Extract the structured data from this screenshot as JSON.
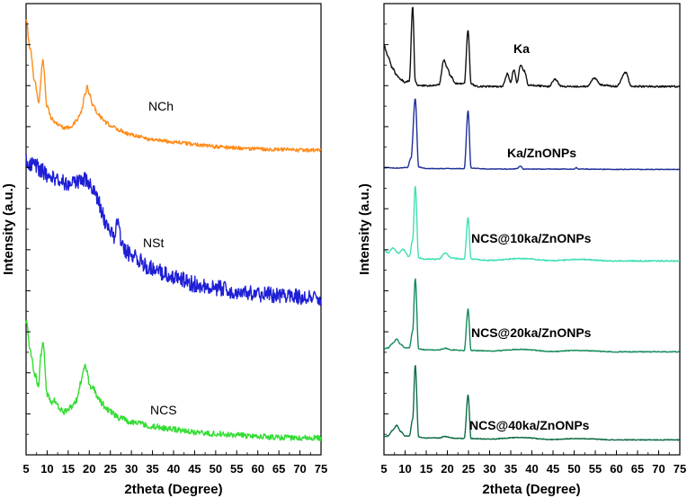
{
  "chart_data": [
    {
      "type": "line",
      "panel": "left",
      "title": "",
      "xlabel": "2theta (Degree)",
      "ylabel": "Intensity (a.u.)",
      "xlim": [
        5,
        75
      ],
      "xticks": [
        5,
        10,
        15,
        20,
        25,
        30,
        35,
        40,
        45,
        50,
        55,
        60,
        65,
        70,
        75
      ],
      "series": [
        {
          "name": "NCh",
          "color": "#ff8c1a",
          "x": [
            5,
            6,
            7,
            8,
            9,
            10,
            11,
            12,
            13,
            14,
            15,
            16,
            17,
            18,
            19,
            19.5,
            20,
            21,
            22,
            23,
            24,
            25,
            27,
            30,
            35,
            40,
            45,
            50,
            55,
            60,
            65,
            70,
            75
          ],
          "y": [
            8.0,
            6.8,
            5.5,
            4.6,
            6.3,
            4.4,
            3.9,
            3.7,
            3.6,
            3.5,
            3.5,
            3.6,
            3.8,
            4.1,
            4.9,
            5.2,
            4.9,
            4.4,
            4.1,
            3.9,
            3.7,
            3.6,
            3.4,
            3.2,
            3.0,
            2.9,
            2.8,
            2.7,
            2.65,
            2.6,
            2.58,
            2.55,
            2.55
          ],
          "noise": 0.08
        },
        {
          "name": "NSt",
          "color": "#1f1fd6",
          "x": [
            5,
            7,
            9,
            11,
            13,
            15,
            17,
            19,
            20,
            21,
            22,
            23,
            24,
            25,
            26,
            26.7,
            27.5,
            28,
            30,
            32,
            34,
            36,
            38,
            40,
            45,
            50,
            55,
            60,
            65,
            70,
            75
          ],
          "y": [
            7.4,
            7.2,
            7.0,
            6.8,
            6.7,
            6.6,
            6.6,
            6.7,
            6.6,
            6.4,
            6.0,
            5.6,
            5.2,
            4.9,
            4.6,
            5.3,
            4.7,
            4.3,
            4.1,
            3.9,
            3.7,
            3.6,
            3.45,
            3.35,
            3.1,
            2.95,
            2.85,
            2.75,
            2.7,
            2.65,
            2.6
          ],
          "noise": 0.28
        },
        {
          "name": "NCS",
          "color": "#33dd33",
          "x": [
            5,
            6,
            7,
            8,
            8.5,
            9,
            10,
            11,
            12,
            13,
            14,
            15,
            16,
            17,
            18,
            19,
            19.5,
            20,
            21,
            22,
            23,
            24,
            25,
            27,
            30,
            35,
            40,
            45,
            50,
            55,
            60,
            65,
            70,
            75
          ],
          "y": [
            6.6,
            5.6,
            4.8,
            4.4,
            5.4,
            5.9,
            4.1,
            3.8,
            3.9,
            3.6,
            3.5,
            3.6,
            3.7,
            3.9,
            4.5,
            5.1,
            4.9,
            4.4,
            4.3,
            4.0,
            3.8,
            3.6,
            3.5,
            3.3,
            3.15,
            3.0,
            2.9,
            2.8,
            2.75,
            2.7,
            2.65,
            2.62,
            2.6,
            2.6
          ],
          "noise": 0.1
        }
      ]
    },
    {
      "type": "line",
      "panel": "right",
      "title": "",
      "xlabel": "2theta (Degree)",
      "ylabel": "Intensity (a.u.)",
      "xlim": [
        5,
        75
      ],
      "xticks": [
        5,
        10,
        15,
        20,
        25,
        30,
        35,
        40,
        45,
        50,
        55,
        60,
        65,
        70,
        75
      ],
      "series": [
        {
          "name": "Ka",
          "color": "#111111",
          "x": [
            5,
            6,
            7,
            8,
            9,
            10,
            11,
            11.8,
            12.4,
            13,
            15,
            18,
            19.2,
            20,
            20.8,
            22,
            24,
            24.9,
            25.6,
            27,
            30,
            33,
            34.2,
            35,
            35.7,
            36.5,
            37.3,
            38.2,
            39.2,
            41,
            44,
            45.5,
            47,
            50,
            53,
            54.8,
            56.5,
            60,
            62.2,
            63.5,
            66,
            70,
            75
          ],
          "y": [
            3.2,
            2.4,
            1.6,
            1.1,
            0.8,
            0.6,
            0.7,
            6.0,
            0.7,
            0.4,
            0.35,
            0.4,
            2.2,
            1.6,
            1.0,
            0.5,
            0.5,
            4.3,
            0.5,
            0.3,
            0.3,
            0.3,
            1.2,
            0.6,
            1.5,
            0.6,
            1.8,
            1.4,
            0.4,
            0.35,
            0.3,
            0.8,
            0.3,
            0.3,
            0.3,
            0.9,
            0.4,
            0.3,
            1.3,
            0.3,
            0.3,
            0.3,
            0.3
          ],
          "noise": 0.06
        },
        {
          "name": "Ka/ZnONPs",
          "color": "#1f2f99",
          "x": [
            5,
            8,
            10.5,
            11.4,
            12.4,
            13.2,
            15,
            20,
            24,
            24.9,
            25.6,
            30,
            35,
            36.5,
            37.3,
            38,
            45,
            50,
            50.5,
            51,
            60,
            75
          ],
          "y": [
            0.3,
            0.25,
            0.3,
            1.2,
            7.0,
            0.35,
            0.2,
            0.2,
            0.2,
            5.8,
            0.25,
            0.15,
            0.15,
            0.2,
            0.45,
            0.15,
            0.15,
            0.15,
            0.3,
            0.15,
            0.12,
            0.12
          ],
          "noise": 0.03
        },
        {
          "name": "NCS@10ka/ZnONPs",
          "color": "#40e0b5",
          "x": [
            5,
            6,
            7,
            8.5,
            9.5,
            11,
            11.8,
            12.4,
            13.2,
            15,
            18,
            19.5,
            21,
            24,
            24.9,
            25.6,
            30,
            37.3,
            45,
            50.5,
            60,
            75
          ],
          "y": [
            1.2,
            0.9,
            1.3,
            0.9,
            1.2,
            0.6,
            2.0,
            6.4,
            0.5,
            0.4,
            0.4,
            0.9,
            0.5,
            0.4,
            3.8,
            0.4,
            0.3,
            0.45,
            0.28,
            0.38,
            0.25,
            0.25
          ],
          "noise": 0.05
        },
        {
          "name": "NCS@20ka/ZnONPs",
          "color": "#148a5a",
          "x": [
            5,
            6,
            7,
            8,
            9,
            10,
            11,
            11.8,
            12.4,
            13.2,
            15,
            18,
            19.5,
            21,
            24,
            24.9,
            25.6,
            30,
            37.3,
            45,
            50.5,
            60,
            75
          ],
          "y": [
            0.5,
            0.6,
            1.0,
            1.4,
            0.9,
            0.6,
            0.6,
            2.2,
            7.1,
            0.5,
            0.4,
            0.4,
            0.55,
            0.4,
            0.35,
            4.2,
            0.35,
            0.3,
            0.45,
            0.25,
            0.35,
            0.22,
            0.22
          ],
          "noise": 0.04
        },
        {
          "name": "NCS@40ka/ZnONPs",
          "color": "#0e6e45",
          "x": [
            5,
            6,
            7,
            8,
            9,
            10,
            11,
            11.8,
            12.4,
            13.2,
            15,
            18,
            19.5,
            21,
            24,
            24.9,
            25.6,
            30,
            37.3,
            45,
            50.5,
            60,
            75
          ],
          "y": [
            0.5,
            0.6,
            1.1,
            1.6,
            1.0,
            0.6,
            0.6,
            2.2,
            7.4,
            0.5,
            0.4,
            0.4,
            0.55,
            0.4,
            0.35,
            4.5,
            0.35,
            0.3,
            0.45,
            0.25,
            0.35,
            0.22,
            0.22
          ],
          "noise": 0.04
        }
      ]
    }
  ]
}
